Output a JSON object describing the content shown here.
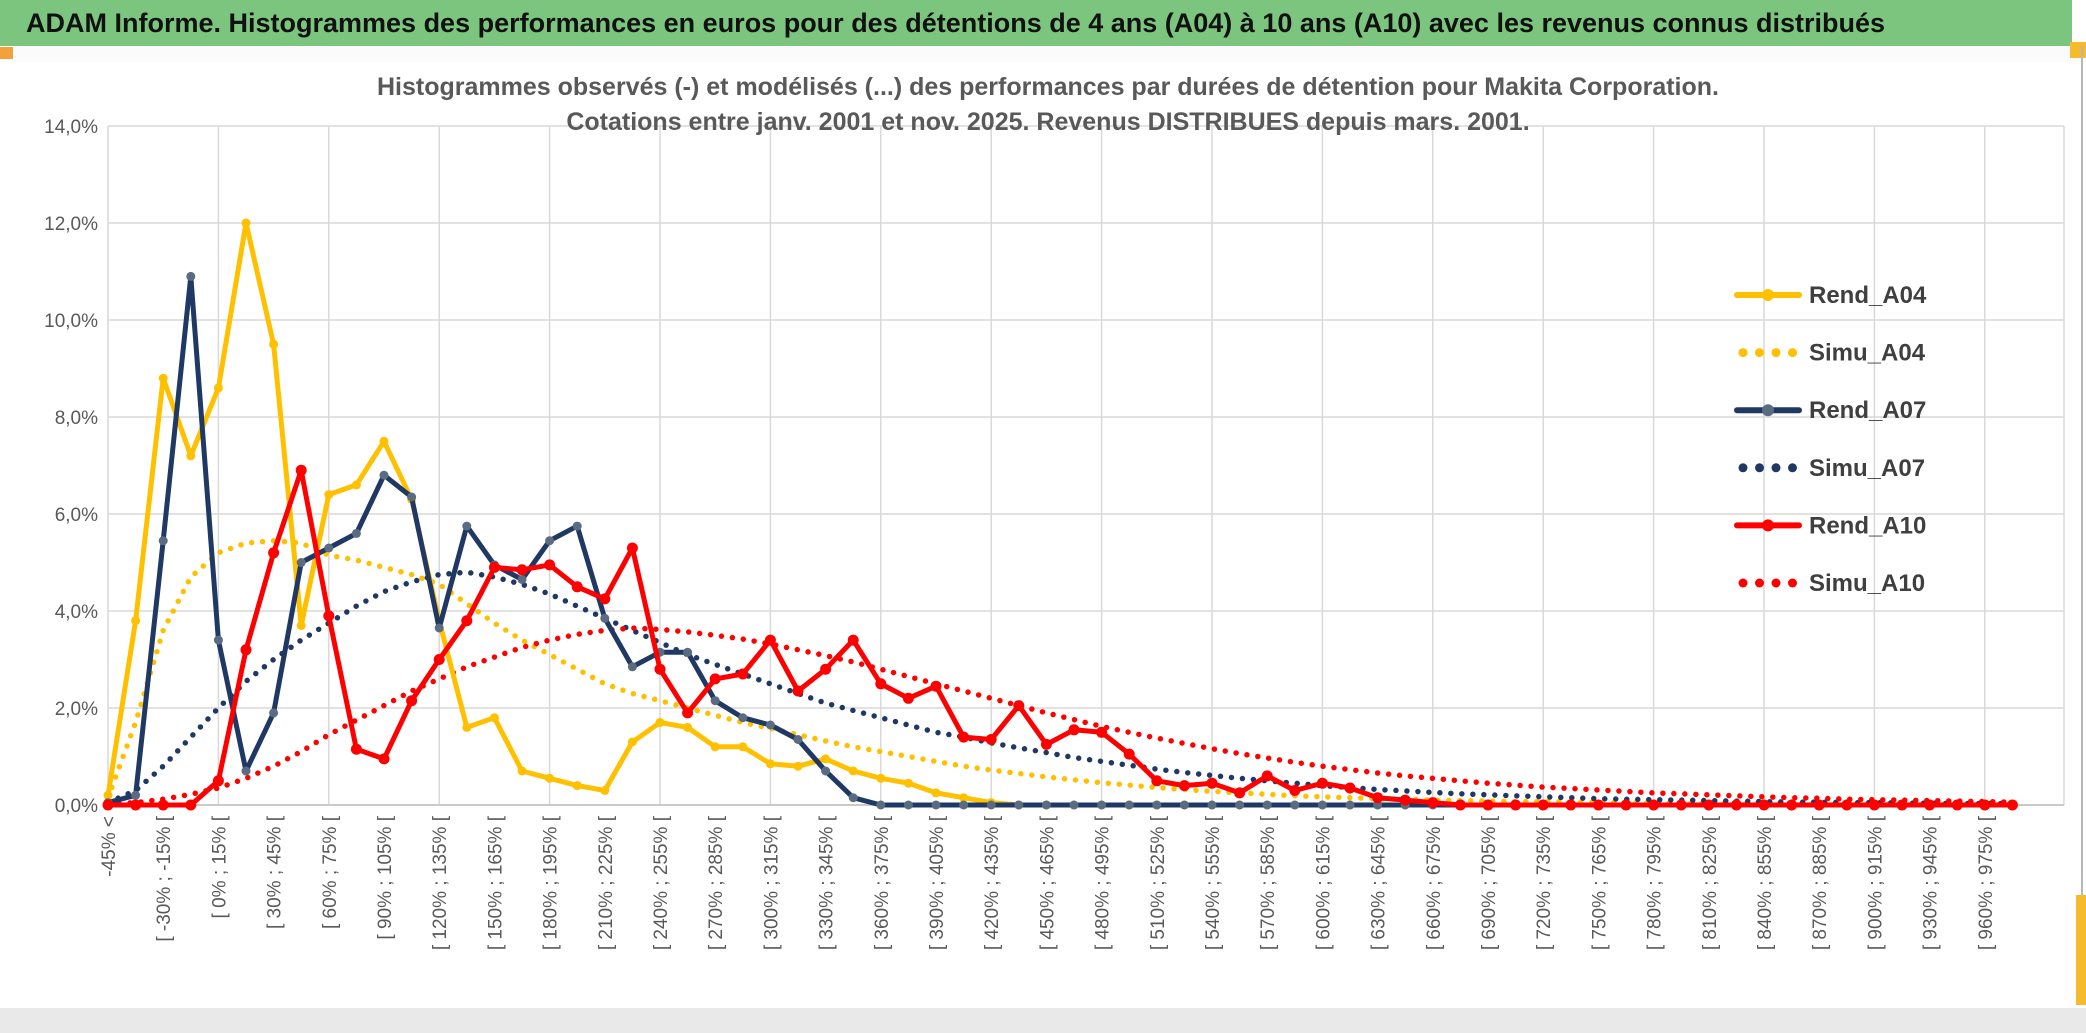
{
  "window": {
    "header": {
      "title": "ADAM Informe. Histogrammes des performances en euros pour des détentions de 4 ans (A04) à 10 ans (A10) avec les revenus connus distribués"
    },
    "colors": {
      "header_bg": "#7cc57e",
      "accent_orange": "#f2a23b",
      "accent_yellow": "#f5bb2c",
      "footer_bg": "#e9e9e9",
      "grid_gray": "#d9d9d9",
      "axis_text_gray": "#595959",
      "legend_text_gray": "#3f3f3f"
    }
  },
  "chart_data": {
    "type": "line",
    "title_line1": "Histogrammes observés (-) et modélisés (...) des performances par durées de détention pour Makita Corporation.",
    "title_line2": "Cotations entre janv. 2001 et nov. 2025. Revenus DISTRIBUES depuis mars. 2001.",
    "grid": true,
    "legend_position": "right-inside",
    "ylim": [
      0,
      14
    ],
    "y_tick_labels": [
      "0,0%",
      "2,0%",
      "4,0%",
      "6,0%",
      "8,0%",
      "10,0%",
      "12,0%",
      "14,0%"
    ],
    "n_bins": 70,
    "bin_width_pct": 15,
    "x_labels_every": 2,
    "x_tick_labels": [
      "-45% <",
      "[ -30% ; -15% [",
      "[ 0% ; 15% [",
      "[ 30% ; 45% [",
      "[ 60% ; 75% [",
      "[ 90% ; 105% [",
      "[ 120% ; 135% [",
      "[ 150% ; 165% [",
      "[ 180% ; 195% [",
      "[ 210% ; 225% [",
      "[ 240% ; 255% [",
      "[ 270% ; 285% [",
      "[ 300% ; 315% [",
      "[ 330% ; 345% [",
      "[ 360% ; 375% [",
      "[ 390% ; 405% [",
      "[ 420% ; 435% [",
      "[ 450% ; 465% [",
      "[ 480% ; 495% [",
      "[ 510% ; 525% [",
      "[ 540% ; 555% [",
      "[ 570% ; 585% [",
      "[ 600% ; 615% [",
      "[ 630% ; 645% [",
      "[ 660% ; 675% [",
      "[ 690% ; 705% [",
      "[ 720% ; 735% [",
      "[ 750% ; 765% [",
      "[ 780% ; 795% [",
      "[ 810% ; 825% [",
      "[ 840% ; 855% [",
      "[ 870% ; 885% [",
      "[ 900% ; 915% [",
      "[ 930% ; 945% [",
      "[ 960% ; 975% ["
    ],
    "series": [
      {
        "name": "Rend_A04",
        "style": "solid",
        "color": "#FFC000",
        "marker_color": "#FFC000",
        "values": [
          0.2,
          3.8,
          8.8,
          7.2,
          8.6,
          12.0,
          9.5,
          3.7,
          6.4,
          6.6,
          7.5,
          6.3,
          3.8,
          1.6,
          1.8,
          0.7,
          0.55,
          0.4,
          0.3,
          1.3,
          1.7,
          1.6,
          1.2,
          1.2,
          0.85,
          0.8,
          0.95,
          0.7,
          0.55,
          0.45,
          0.25,
          0.15,
          0.05,
          0,
          0,
          0,
          0,
          0,
          0,
          0,
          0,
          0,
          0,
          0,
          0,
          0,
          0,
          0,
          0,
          0,
          0,
          0,
          0,
          0,
          0,
          0,
          0,
          0,
          0,
          0,
          0,
          0,
          0,
          0,
          0,
          0,
          0,
          0,
          0,
          0
        ]
      },
      {
        "name": "Simu_A04",
        "style": "dotted",
        "color": "#FFC000",
        "values": [
          0.15,
          1.7,
          3.6,
          4.7,
          5.2,
          5.4,
          5.45,
          5.4,
          5.15,
          5.05,
          4.9,
          4.75,
          4.55,
          4.15,
          3.75,
          3.4,
          3.1,
          2.8,
          2.5,
          2.3,
          2.15,
          2.0,
          1.85,
          1.7,
          1.58,
          1.45,
          1.32,
          1.2,
          1.1,
          1.0,
          0.9,
          0.8,
          0.72,
          0.65,
          0.58,
          0.52,
          0.46,
          0.41,
          0.36,
          0.32,
          0.28,
          0.25,
          0.22,
          0.19,
          0.17,
          0.15,
          0.13,
          0.12,
          0.1,
          0.09,
          0.08,
          0.07,
          0.07,
          0.06,
          0.05,
          0.05,
          0.04,
          0.04,
          0.03,
          0.03,
          0.03,
          0.02,
          0.02,
          0.02,
          0.02,
          0.02,
          0.01,
          0.01,
          0.01,
          0.01
        ]
      },
      {
        "name": "Rend_A07",
        "style": "solid",
        "color": "#1F3864",
        "marker_color": "#5A6B82",
        "values": [
          0.05,
          0.2,
          5.45,
          10.9,
          3.4,
          0.7,
          1.9,
          5.0,
          5.3,
          5.6,
          6.8,
          6.35,
          3.65,
          5.75,
          4.95,
          4.65,
          5.45,
          5.75,
          3.85,
          2.85,
          3.15,
          3.15,
          2.15,
          1.8,
          1.65,
          1.35,
          0.7,
          0.15,
          0,
          0,
          0,
          0,
          0,
          0,
          0,
          0,
          0,
          0,
          0,
          0,
          0,
          0,
          0,
          0,
          0,
          0,
          0,
          0,
          0,
          0,
          0,
          0,
          0,
          0,
          0,
          0,
          0,
          0,
          0,
          0,
          0,
          0,
          0,
          0,
          0,
          0,
          0,
          0,
          0,
          0
        ]
      },
      {
        "name": "Simu_A07",
        "style": "dotted",
        "color": "#1F3864",
        "values": [
          0.05,
          0.3,
          0.8,
          1.4,
          2.0,
          2.55,
          3.0,
          3.4,
          3.75,
          4.1,
          4.4,
          4.6,
          4.75,
          4.8,
          4.7,
          4.55,
          4.35,
          4.1,
          3.85,
          3.6,
          3.35,
          3.1,
          2.9,
          2.7,
          2.5,
          2.3,
          2.1,
          1.95,
          1.8,
          1.65,
          1.5,
          1.4,
          1.28,
          1.18,
          1.08,
          0.98,
          0.9,
          0.82,
          0.74,
          0.67,
          0.61,
          0.55,
          0.5,
          0.45,
          0.4,
          0.36,
          0.32,
          0.29,
          0.26,
          0.23,
          0.21,
          0.19,
          0.17,
          0.15,
          0.13,
          0.12,
          0.11,
          0.1,
          0.09,
          0.08,
          0.07,
          0.06,
          0.06,
          0.05,
          0.05,
          0.04,
          0.04,
          0.03,
          0.03,
          0.03
        ]
      },
      {
        "name": "Rend_A10",
        "style": "solid",
        "color": "#FF0000",
        "marker_color": "#FF0000",
        "values": [
          0,
          0,
          0,
          0,
          0.5,
          3.2,
          5.2,
          6.9,
          3.9,
          1.15,
          0.95,
          2.15,
          3.0,
          3.8,
          4.9,
          4.85,
          4.95,
          4.5,
          4.25,
          5.3,
          2.8,
          1.9,
          2.6,
          2.7,
          3.4,
          2.35,
          2.8,
          3.4,
          2.5,
          2.2,
          2.45,
          1.4,
          1.35,
          2.05,
          1.25,
          1.55,
          1.5,
          1.05,
          0.5,
          0.4,
          0.45,
          0.25,
          0.6,
          0.3,
          0.45,
          0.35,
          0.15,
          0.1,
          0.05,
          0,
          0,
          0,
          0,
          0,
          0,
          0,
          0,
          0,
          0,
          0,
          0,
          0,
          0,
          0,
          0,
          0,
          0,
          0,
          0,
          0
        ]
      },
      {
        "name": "Simu_A10",
        "style": "dotted",
        "color": "#FF0000",
        "values": [
          0.02,
          0.05,
          0.12,
          0.22,
          0.35,
          0.55,
          0.8,
          1.1,
          1.45,
          1.75,
          2.05,
          2.35,
          2.6,
          2.85,
          3.05,
          3.25,
          3.4,
          3.52,
          3.6,
          3.65,
          3.62,
          3.57,
          3.5,
          3.42,
          3.32,
          3.2,
          3.08,
          2.95,
          2.8,
          2.65,
          2.5,
          2.35,
          2.2,
          2.05,
          1.9,
          1.76,
          1.62,
          1.5,
          1.38,
          1.27,
          1.16,
          1.06,
          0.97,
          0.88,
          0.8,
          0.73,
          0.66,
          0.6,
          0.55,
          0.5,
          0.45,
          0.41,
          0.37,
          0.34,
          0.31,
          0.28,
          0.25,
          0.23,
          0.21,
          0.19,
          0.17,
          0.15,
          0.14,
          0.12,
          0.11,
          0.1,
          0.09,
          0.08,
          0.07,
          0.06
        ]
      }
    ]
  }
}
